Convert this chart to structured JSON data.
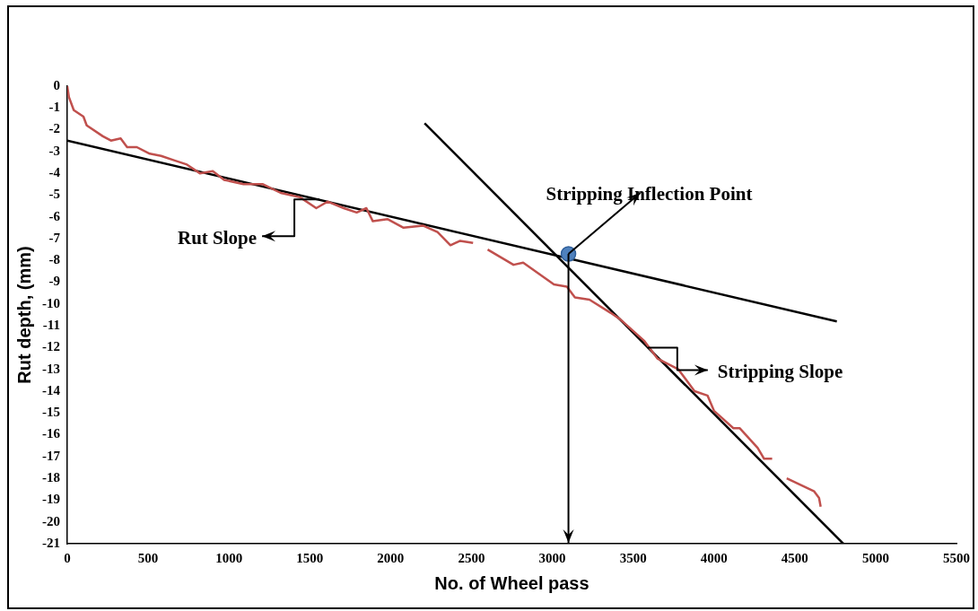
{
  "chart_data": {
    "type": "line",
    "xlabel": "No. of Wheel pass",
    "ylabel": "Rut depth, (mm)",
    "xlim": [
      0,
      5500
    ],
    "xticks": [
      0,
      500,
      1000,
      1500,
      2000,
      2500,
      3000,
      3500,
      4000,
      4500,
      5000,
      5500
    ],
    "ylim": [
      -21,
      0
    ],
    "yticks": [
      -21,
      -20,
      -19,
      -18,
      -17,
      -16,
      -15,
      -14,
      -13,
      -12,
      -11,
      -10,
      -9,
      -8,
      -7,
      -6,
      -5,
      -4,
      -3,
      -2,
      -1,
      0
    ],
    "grid": false,
    "legend": false,
    "line_style": "solid",
    "series": [
      {
        "type": "line",
        "color": "#c0504d",
        "marker": "none",
        "x": [
          0,
          10,
          40,
          100,
          120,
          220,
          270,
          330,
          370,
          430,
          510,
          580,
          660,
          740,
          820,
          900,
          970,
          1090,
          1210,
          1320,
          1440,
          1540,
          1610,
          1710,
          1790,
          1850,
          1890,
          1980,
          2080,
          2200,
          2290,
          2370,
          2430,
          2510,
          2560,
          2600,
          2760,
          2820,
          3010,
          3090,
          3140,
          3230,
          3360,
          3420,
          3570,
          3650,
          3780,
          3880,
          3960,
          4000,
          4120,
          4160,
          4270,
          4310,
          4360,
          4400,
          4450,
          4620,
          4650,
          4660
        ],
        "values": [
          0,
          -0.5,
          -1.1,
          -1.4,
          -1.8,
          -2.3,
          -2.5,
          -2.4,
          -2.8,
          -2.8,
          -3.1,
          -3.2,
          -3.4,
          -3.6,
          -4.0,
          -3.9,
          -4.3,
          -4.5,
          -4.5,
          -4.9,
          -5.1,
          -5.6,
          -5.3,
          -5.6,
          -5.8,
          -5.6,
          -6.2,
          -6.1,
          -6.5,
          -6.4,
          -6.7,
          -7.3,
          -7.1,
          -7.2,
          null,
          -7.5,
          -8.2,
          -8.1,
          -9.1,
          -9.2,
          -9.7,
          -9.8,
          -10.4,
          -10.7,
          -11.7,
          -12.5,
          -13.0,
          -14.0,
          -14.2,
          -14.9,
          -15.7,
          -15.7,
          -16.6,
          -17.1,
          -17.1,
          null,
          -18.0,
          -18.6,
          -18.9,
          -19.3
        ]
      },
      {
        "type": "line",
        "color": "#000000",
        "marker": "none",
        "x": [
          0,
          4760
        ],
        "values": [
          -2.5,
          -10.8
        ]
      },
      {
        "type": "line",
        "color": "#000000",
        "marker": "none",
        "x": [
          2210,
          4800
        ],
        "values": [
          -1.7,
          -21
        ]
      },
      {
        "type": "scatter",
        "color": "#4f81bd",
        "marker": "circle",
        "x": [
          3100
        ],
        "values": [
          -7.7
        ]
      }
    ],
    "annotations": [
      {
        "text": "Stripping Inflection Point",
        "x": 3100,
        "y": -7.7
      },
      {
        "text": "Rut Slope",
        "x": 1560,
        "y": -5.2
      },
      {
        "text": "Stripping Slope",
        "x": 3590,
        "y": -12.0
      }
    ]
  }
}
